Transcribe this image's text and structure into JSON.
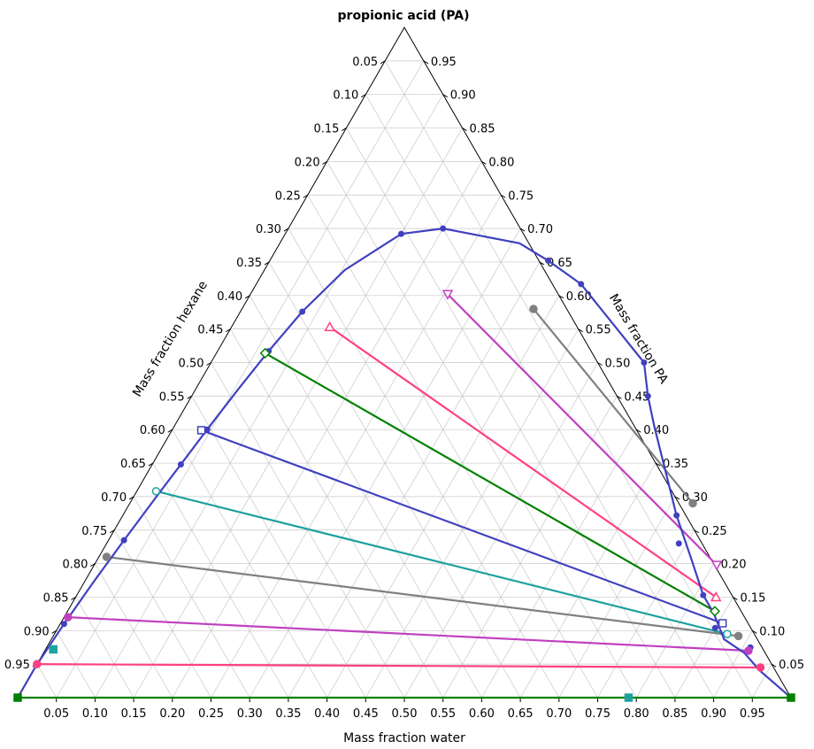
{
  "chart_data": {
    "type": "scatter",
    "subtype": "ternary",
    "title": "propionic acid (PA)",
    "axes": {
      "bottom_label": "Mass fraction water",
      "left_label": "Mass fraction hexane",
      "right_label": "Mass fraction PA",
      "range": [
        0,
        1
      ],
      "tick_step": 0.05,
      "tick_labels": [
        "0.05",
        "0.10",
        "0.15",
        "0.20",
        "0.25",
        "0.30",
        "0.35",
        "0.40",
        "0.45",
        "0.50",
        "0.55",
        "0.60",
        "0.65",
        "0.70",
        "0.75",
        "0.80",
        "0.85",
        "0.90",
        "0.95"
      ]
    },
    "grid": true,
    "legend": "none",
    "colors": {
      "binodal": "#4040c0",
      "pink": "#ff4080",
      "magenta": "#c040c0",
      "gray": "#808080",
      "teal": "#20a0a0",
      "blue": "#4040c0",
      "green": "#008000"
    },
    "binodal_curve": {
      "color": "#4040c0",
      "points": [
        {
          "water": 0.0,
          "pa": 0.0
        },
        {
          "water": 0.0,
          "pa": 0.046
        },
        {
          "water": 0.005,
          "pa": 0.11
        },
        {
          "water": 0.012,
          "pa": 0.174
        },
        {
          "water": 0.02,
          "pa": 0.235
        },
        {
          "water": 0.03,
          "pa": 0.303
        },
        {
          "water": 0.037,
          "pa": 0.348
        },
        {
          "water": 0.045,
          "pa": 0.4
        },
        {
          "water": 0.055,
          "pa": 0.46
        },
        {
          "water": 0.066,
          "pa": 0.517
        },
        {
          "water": 0.08,
          "pa": 0.576
        },
        {
          "water": 0.104,
          "pa": 0.638
        },
        {
          "water": 0.15,
          "pa": 0.692
        },
        {
          "water": 0.2,
          "pa": 0.7
        },
        {
          "water": 0.31,
          "pa": 0.678
        },
        {
          "water": 0.36,
          "pa": 0.652
        },
        {
          "water": 0.42,
          "pa": 0.617
        },
        {
          "water": 0.56,
          "pa": 0.5
        },
        {
          "water": 0.59,
          "pa": 0.45
        },
        {
          "water": 0.62,
          "pa": 0.406
        },
        {
          "water": 0.716,
          "pa": 0.272
        },
        {
          "water": 0.77,
          "pa": 0.204
        },
        {
          "water": 0.81,
          "pa": 0.153
        },
        {
          "water": 0.837,
          "pa": 0.126
        },
        {
          "water": 0.87,
          "pa": 0.087
        },
        {
          "water": 0.906,
          "pa": 0.067
        },
        {
          "water": 0.94,
          "pa": 0.04
        },
        {
          "water": 1.0,
          "pa": 0.0
        }
      ],
      "markers": [
        {
          "water": 0.005,
          "pa": 0.11
        },
        {
          "water": 0.02,
          "pa": 0.235
        },
        {
          "water": 0.037,
          "pa": 0.348
        },
        {
          "water": 0.045,
          "pa": 0.4
        },
        {
          "water": 0.066,
          "pa": 0.517
        },
        {
          "water": 0.08,
          "pa": 0.576
        },
        {
          "water": 0.15,
          "pa": 0.692
        },
        {
          "water": 0.2,
          "pa": 0.7
        },
        {
          "water": 0.36,
          "pa": 0.652
        },
        {
          "water": 0.42,
          "pa": 0.617
        },
        {
          "water": 0.56,
          "pa": 0.5
        },
        {
          "water": 0.59,
          "pa": 0.45
        },
        {
          "water": 0.716,
          "pa": 0.272
        },
        {
          "water": 0.74,
          "pa": 0.23
        },
        {
          "water": 0.81,
          "pa": 0.153
        },
        {
          "water": 0.85,
          "pa": 0.104
        },
        {
          "water": 0.91,
          "pa": 0.075
        }
      ]
    },
    "tie_lines": [
      {
        "color": "#008000",
        "marker": "square-filled",
        "raffinate": {
          "water": 0.0,
          "pa": 0.0
        },
        "extract": {
          "water": 1.0,
          "pa": 0.0
        }
      },
      {
        "color": "#ff4080",
        "marker": "circle-filled",
        "raffinate": {
          "water": 0.0,
          "pa": 0.05
        },
        "extract": {
          "water": 0.938,
          "pa": 0.045
        }
      },
      {
        "color": "#c040c0",
        "marker": "circle-filled",
        "raffinate": {
          "water": 0.005,
          "pa": 0.12
        },
        "extract": {
          "water": 0.91,
          "pa": 0.07
        }
      },
      {
        "color": "#808080",
        "marker": "circle-filled",
        "raffinate": {
          "water": 0.01,
          "pa": 0.21
        },
        "extract": {
          "water": 0.886,
          "pa": 0.092
        }
      },
      {
        "color": "#20a0a0",
        "marker": "circle-open",
        "raffinate": {
          "water": 0.025,
          "pa": 0.308
        },
        "extract": {
          "water": 0.87,
          "pa": 0.095
        }
      },
      {
        "color": "#4040c0",
        "marker": "square-open",
        "raffinate": {
          "water": 0.038,
          "pa": 0.399
        },
        "extract": {
          "water": 0.856,
          "pa": 0.111
        }
      },
      {
        "color": "#008000",
        "marker": "diamond-open",
        "raffinate": {
          "water": 0.063,
          "pa": 0.514
        },
        "extract": {
          "water": 0.837,
          "pa": 0.129
        }
      },
      {
        "color": "#ff4080",
        "marker": "triangle-up-open",
        "raffinate": {
          "water": 0.127,
          "pa": 0.553
        },
        "extract": {
          "water": 0.828,
          "pa": 0.15
        }
      },
      {
        "color": "#c040c0",
        "marker": "triangle-down-open",
        "raffinate": {
          "water": 0.255,
          "pa": 0.602
        },
        "extract": {
          "water": 0.805,
          "pa": 0.198
        }
      },
      {
        "color": "#808080",
        "marker": "circle-filled",
        "raffinate": {
          "water": 0.377,
          "pa": 0.58
        },
        "extract": {
          "water": 0.728,
          "pa": 0.29
        }
      }
    ],
    "extra_markers": [
      {
        "color": "#20a0a0",
        "shape": "square-filled",
        "water": 0.01,
        "pa": 0.072
      },
      {
        "color": "#20a0a0",
        "shape": "square-filled",
        "water": 0.79,
        "pa": 0.0
      }
    ]
  }
}
